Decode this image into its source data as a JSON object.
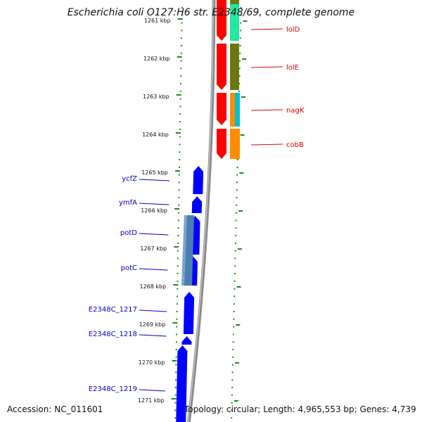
{
  "title": "Escherichia coli O127:H6 str. E2348/69, complete genome",
  "accession": "Accession: NC_011601",
  "topology": "Topology: circular; Length: 4,965,553 bp; Genes: 4,739",
  "scale_labels": [
    "1261 kbp",
    "1262 kbp",
    "1263 kbp",
    "1264 kbp",
    "1265 kbp",
    "1266 kbp",
    "1267 kbp",
    "1268 kbp",
    "1269 kbp",
    "1270 kbp",
    "1271 kbp"
  ],
  "genes_right": [
    {
      "label": "lolD",
      "color": "#e00000"
    },
    {
      "label": "lolE",
      "color": "#e00000"
    },
    {
      "label": "nagK",
      "color": "#e00000"
    },
    {
      "label": "cobB",
      "color": "#e00000"
    }
  ],
  "genes_left": [
    {
      "label": "ycfZ",
      "color": "#0000cc"
    },
    {
      "label": "ymfA",
      "color": "#0000cc"
    },
    {
      "label": "potD",
      "color": "#0000cc"
    },
    {
      "label": "potC",
      "color": "#0000cc"
    },
    {
      "label": "E2348C_1217",
      "color": "#0000cc"
    },
    {
      "label": "E2348C_1218",
      "color": "#0000cc"
    },
    {
      "label": "E2348C_1219",
      "color": "#0000cc"
    }
  ],
  "colors": {
    "forward_cds": "#ff0000",
    "reverse_cds": "#0000ff",
    "backbone": "#8a8a8a",
    "ticks": "#1a8a1a",
    "cog_lolD": "#22e8a0",
    "cog_lolE": "#6b7a10",
    "cog_nagK_a": "#ff8c00",
    "cog_nagK_b": "#00c0d0",
    "cog_cobB": "#ff8c00",
    "cog_pot": "#4a7fb0"
  }
}
